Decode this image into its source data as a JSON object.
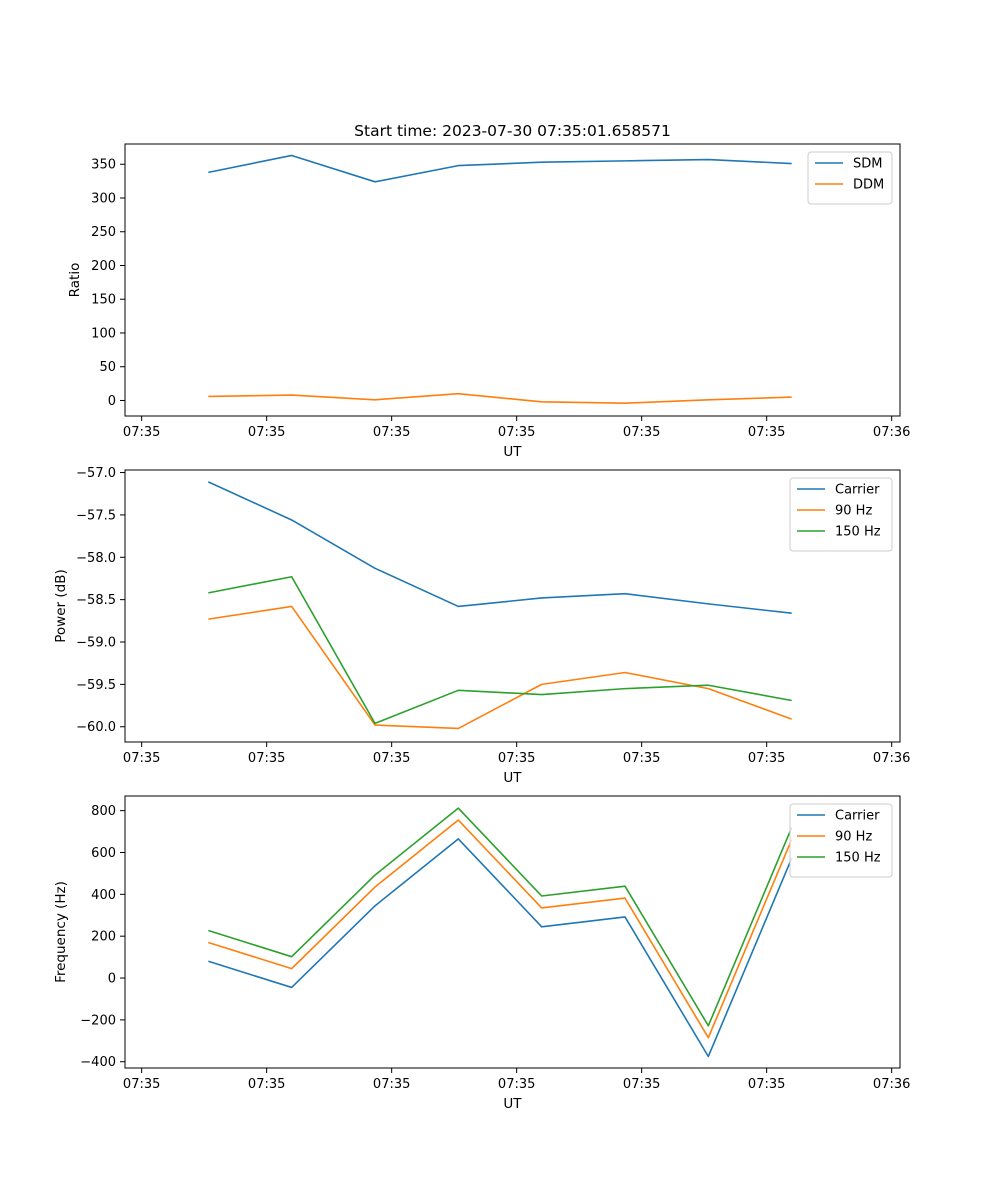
{
  "figure_title": "Start time: 2023-07-30 07:35:01.658571",
  "chart_data": [
    {
      "type": "line",
      "title": "Start time: 2023-07-30 07:35:01.658571",
      "xlabel": "UT",
      "ylabel": "Ratio",
      "x_tick_labels": [
        "07:35",
        "07:35",
        "07:35",
        "07:35",
        "07:35",
        "07:35",
        "07:36"
      ],
      "x": [
        1,
        2,
        3,
        4,
        5,
        6,
        7,
        8
      ],
      "xlim": [
        0,
        9.3
      ],
      "x_ticks": [
        0.2,
        1.7,
        3.2,
        4.7,
        6.2,
        7.7,
        9.2
      ],
      "ylim": [
        -23,
        380
      ],
      "y_ticks": [
        0,
        50,
        100,
        150,
        200,
        250,
        300,
        350
      ],
      "y_tick_labels": [
        "0",
        "50",
        "100",
        "150",
        "200",
        "250",
        "300",
        "350"
      ],
      "legend_position": "top-right",
      "series": [
        {
          "name": "SDM",
          "color": "#1f77b4",
          "values": [
            338,
            363,
            324,
            348,
            353,
            355,
            357,
            351
          ]
        },
        {
          "name": "DDM",
          "color": "#ff7f0e",
          "values": [
            6,
            8,
            1,
            10,
            -2,
            -4,
            1,
            5
          ]
        }
      ]
    },
    {
      "type": "line",
      "title": "",
      "xlabel": "UT",
      "ylabel": "Power (dB)",
      "x_tick_labels": [
        "07:35",
        "07:35",
        "07:35",
        "07:35",
        "07:35",
        "07:35",
        "07:36"
      ],
      "x": [
        1,
        2,
        3,
        4,
        5,
        6,
        7,
        8
      ],
      "xlim": [
        0,
        9.3
      ],
      "x_ticks": [
        0.2,
        1.7,
        3.2,
        4.7,
        6.2,
        7.7,
        9.2
      ],
      "ylim": [
        -60.18,
        -56.97
      ],
      "y_ticks": [
        -60.0,
        -59.5,
        -59.0,
        -58.5,
        -58.0,
        -57.5,
        -57.0
      ],
      "y_tick_labels": [
        "−60.0",
        "−59.5",
        "−59.0",
        "−58.5",
        "−58.0",
        "−57.5",
        "−57.0"
      ],
      "legend_position": "top-right",
      "series": [
        {
          "name": "Carrier",
          "color": "#1f77b4",
          "values": [
            -57.11,
            -57.56,
            -58.13,
            -58.58,
            -58.48,
            -58.43,
            -58.55,
            -58.66
          ]
        },
        {
          "name": "90 Hz",
          "color": "#ff7f0e",
          "values": [
            -58.73,
            -58.58,
            -59.98,
            -60.02,
            -59.5,
            -59.36,
            -59.55,
            -59.91
          ]
        },
        {
          "name": "150 Hz",
          "color": "#2ca02c",
          "values": [
            -58.42,
            -58.23,
            -59.96,
            -59.57,
            -59.62,
            -59.55,
            -59.51,
            -59.69
          ]
        }
      ]
    },
    {
      "type": "line",
      "title": "",
      "xlabel": "UT",
      "ylabel": "Frequency (Hz)",
      "x_tick_labels": [
        "07:35",
        "07:35",
        "07:35",
        "07:35",
        "07:35",
        "07:35",
        "07:36"
      ],
      "x": [
        1,
        2,
        3,
        4,
        5,
        6,
        7,
        8
      ],
      "xlim": [
        0,
        9.3
      ],
      "x_ticks": [
        0.2,
        1.7,
        3.2,
        4.7,
        6.2,
        7.7,
        9.2
      ],
      "ylim": [
        -430,
        870
      ],
      "y_ticks": [
        -400,
        -200,
        0,
        200,
        400,
        600,
        800
      ],
      "y_tick_labels": [
        "−400",
        "−200",
        "0",
        "200",
        "400",
        "600",
        "800"
      ],
      "legend_position": "top-right",
      "series": [
        {
          "name": "Carrier",
          "color": "#1f77b4",
          "values": [
            80,
            -45,
            345,
            665,
            245,
            292,
            -375,
            572
          ]
        },
        {
          "name": "90 Hz",
          "color": "#ff7f0e",
          "values": [
            170,
            45,
            435,
            755,
            335,
            382,
            -285,
            662
          ]
        },
        {
          "name": "150 Hz",
          "color": "#2ca02c",
          "values": [
            227,
            102,
            492,
            812,
            392,
            439,
            -228,
            719
          ]
        }
      ]
    }
  ]
}
